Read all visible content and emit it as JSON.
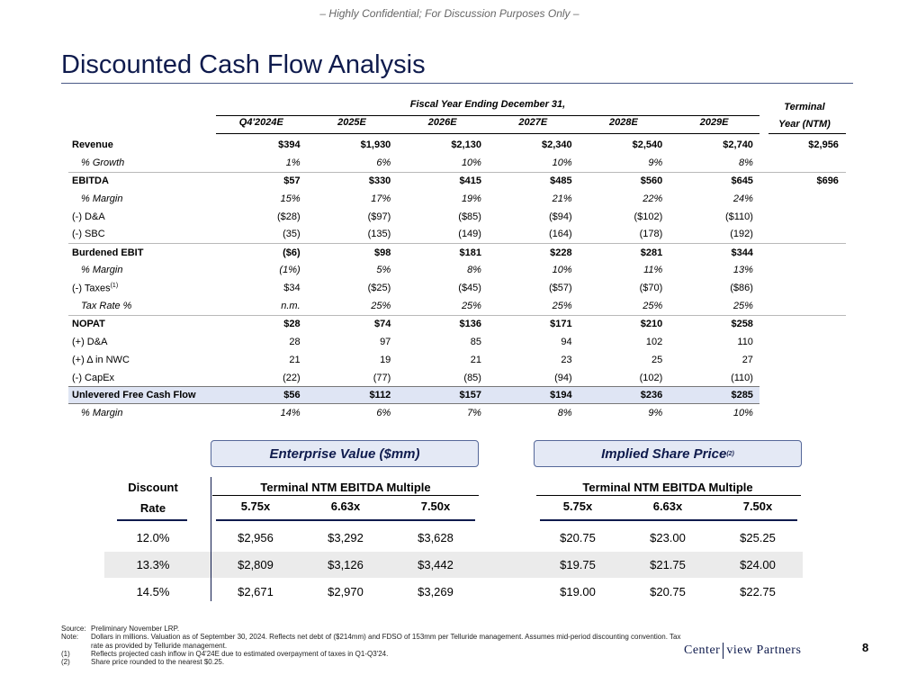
{
  "header": {
    "confidential": "– Highly Confidential; For Discussion Purposes Only –",
    "title": "Discounted Cash Flow Analysis"
  },
  "dcf": {
    "fiscal_header": "Fiscal Year Ending December 31,",
    "terminal_header_1": "Terminal",
    "terminal_header_2": "Year (NTM)",
    "columns": [
      "Q4'2024E",
      "2025E",
      "2026E",
      "2027E",
      "2028E",
      "2029E"
    ],
    "rows": [
      {
        "label": "Revenue",
        "values": [
          "$394",
          "$1,930",
          "$2,130",
          "$2,340",
          "$2,540",
          "$2,740"
        ],
        "terminal": "$2,956"
      },
      {
        "label": "% Growth",
        "values": [
          "1%",
          "6%",
          "10%",
          "10%",
          "9%",
          "8%"
        ],
        "terminal": ""
      },
      {
        "label": "EBITDA",
        "values": [
          "$57",
          "$330",
          "$415",
          "$485",
          "$560",
          "$645"
        ],
        "terminal": "$696"
      },
      {
        "label": "% Margin",
        "values": [
          "15%",
          "17%",
          "19%",
          "21%",
          "22%",
          "24%"
        ],
        "terminal": ""
      },
      {
        "label": "(-) D&A",
        "values": [
          "($28)",
          "($97)",
          "($85)",
          "($94)",
          "($102)",
          "($110)"
        ],
        "terminal": ""
      },
      {
        "label": "(-) SBC",
        "values": [
          "(35)",
          "(135)",
          "(149)",
          "(164)",
          "(178)",
          "(192)"
        ],
        "terminal": ""
      },
      {
        "label": "Burdened EBIT",
        "values": [
          "($6)",
          "$98",
          "$181",
          "$228",
          "$281",
          "$344"
        ],
        "terminal": ""
      },
      {
        "label": "% Margin",
        "values": [
          "(1%)",
          "5%",
          "8%",
          "10%",
          "11%",
          "13%"
        ],
        "terminal": ""
      },
      {
        "label": "(-) Taxes",
        "label_sup": "(1)",
        "values": [
          "$34",
          "($25)",
          "($45)",
          "($57)",
          "($70)",
          "($86)"
        ],
        "terminal": ""
      },
      {
        "label": "Tax Rate %",
        "values": [
          "n.m.",
          "25%",
          "25%",
          "25%",
          "25%",
          "25%"
        ],
        "terminal": ""
      },
      {
        "label": "NOPAT",
        "values": [
          "$28",
          "$74",
          "$136",
          "$171",
          "$210",
          "$258"
        ],
        "terminal": ""
      },
      {
        "label": "(+) D&A",
        "values": [
          "28",
          "97",
          "85",
          "94",
          "102",
          "110"
        ],
        "terminal": ""
      },
      {
        "label": "(+) Δ in NWC",
        "values": [
          "21",
          "19",
          "21",
          "23",
          "25",
          "27"
        ],
        "terminal": ""
      },
      {
        "label": "(-) CapEx",
        "values": [
          "(22)",
          "(77)",
          "(85)",
          "(94)",
          "(102)",
          "(110)"
        ],
        "terminal": ""
      },
      {
        "label": "Unlevered Free Cash Flow",
        "values": [
          "$56",
          "$112",
          "$157",
          "$194",
          "$236",
          "$285"
        ],
        "terminal": ""
      },
      {
        "label": "% Margin",
        "values": [
          "14%",
          "6%",
          "7%",
          "8%",
          "9%",
          "10%"
        ],
        "terminal": ""
      }
    ]
  },
  "sensitivity": {
    "ev_box": "Enterprise Value ($mm)",
    "sp_box": "Implied Share Price",
    "sp_box_sup": "(2)",
    "discount_label_1": "Discount",
    "discount_label_2": "Rate",
    "multiple_title": "Terminal NTM EBITDA Multiple",
    "multiples": [
      "5.75x",
      "6.63x",
      "7.50x"
    ],
    "rows": [
      {
        "rate": "12.0%",
        "ev": [
          "$2,956",
          "$3,292",
          "$3,628"
        ],
        "sp": [
          "$20.75",
          "$23.00",
          "$25.25"
        ]
      },
      {
        "rate": "13.3%",
        "ev": [
          "$2,809",
          "$3,126",
          "$3,442"
        ],
        "sp": [
          "$19.75",
          "$21.75",
          "$24.00"
        ]
      },
      {
        "rate": "14.5%",
        "ev": [
          "$2,671",
          "$2,970",
          "$3,269"
        ],
        "sp": [
          "$19.00",
          "$20.75",
          "$22.75"
        ]
      }
    ]
  },
  "footer": {
    "notes": [
      {
        "key": "Source:",
        "text": "Preliminary November LRP."
      },
      {
        "key": "Note:",
        "text": "Dollars in millions. Valuation as of September 30, 2024. Reflects net debt of ($214mm) and FDSO of 153mm per Telluride management. Assumes mid-period discounting convention. Tax rate as provided by Telluride management."
      },
      {
        "key": "(1)",
        "text": "Reflects projected cash inflow in Q4'24E due to estimated overpayment of taxes in Q1-Q3'24."
      },
      {
        "key": "(2)",
        "text": "Share price rounded to the nearest $0.25."
      }
    ],
    "logo_left": "Center",
    "logo_right": "view Partners",
    "page_number": "8"
  }
}
